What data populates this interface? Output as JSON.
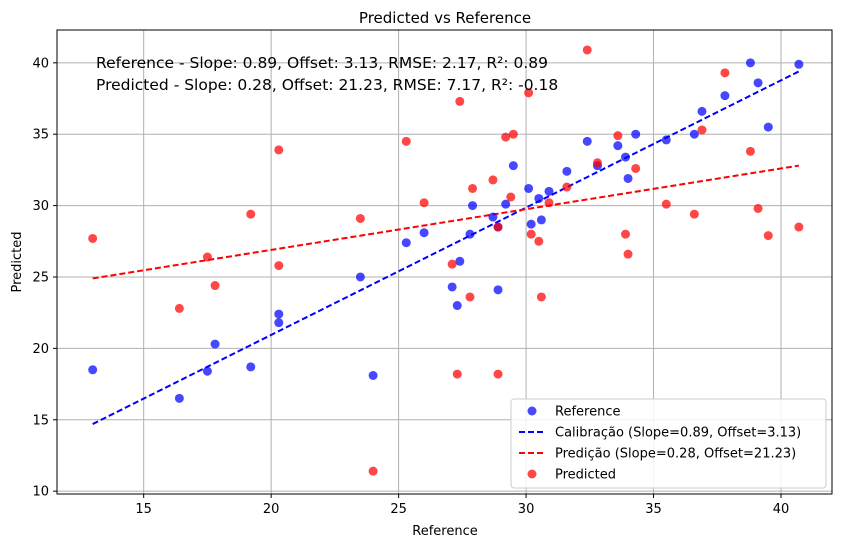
{
  "chart_data": {
    "type": "scatter",
    "title": "Predicted vs Reference",
    "xlabel": "Reference",
    "ylabel": "Predicted",
    "xlim": [
      11.6,
      42.0
    ],
    "ylim": [
      9.8,
      42.3
    ],
    "xticks": [
      15,
      20,
      25,
      30,
      35,
      40
    ],
    "yticks": [
      10,
      15,
      20,
      25,
      30,
      35,
      40
    ],
    "grid": true,
    "legend_position": "lower-right",
    "annotations": [
      "Reference - Slope: 0.89, Offset: 3.13, RMSE: 2.17, R²: 0.89",
      "Predicted - Slope: 0.28, Offset: 21.23, RMSE: 7.17, R²: -0.18"
    ],
    "colors": {
      "reference": "#0000ff",
      "predicted": "#ff0000"
    },
    "series": [
      {
        "name": "Reference",
        "kind": "scatter",
        "points": [
          [
            13.0,
            18.5
          ],
          [
            16.4,
            16.5
          ],
          [
            17.5,
            18.4
          ],
          [
            17.8,
            20.3
          ],
          [
            19.2,
            18.7
          ],
          [
            20.3,
            21.8
          ],
          [
            20.3,
            22.4
          ],
          [
            23.5,
            25.0
          ],
          [
            24.0,
            18.1
          ],
          [
            25.3,
            27.4
          ],
          [
            26.0,
            28.1
          ],
          [
            27.1,
            24.3
          ],
          [
            27.3,
            23.0
          ],
          [
            27.4,
            26.1
          ],
          [
            27.8,
            28.0
          ],
          [
            27.9,
            30.0
          ],
          [
            28.7,
            29.2
          ],
          [
            28.9,
            28.5
          ],
          [
            28.9,
            24.1
          ],
          [
            29.2,
            30.1
          ],
          [
            29.5,
            32.8
          ],
          [
            30.1,
            31.2
          ],
          [
            30.2,
            28.7
          ],
          [
            30.5,
            30.5
          ],
          [
            30.6,
            29.0
          ],
          [
            30.9,
            31.0
          ],
          [
            31.6,
            32.4
          ],
          [
            32.4,
            34.5
          ],
          [
            32.8,
            32.8
          ],
          [
            33.6,
            34.2
          ],
          [
            33.9,
            33.4
          ],
          [
            34.0,
            31.9
          ],
          [
            34.3,
            35.0
          ],
          [
            35.5,
            34.6
          ],
          [
            36.6,
            35.0
          ],
          [
            36.9,
            36.6
          ],
          [
            37.8,
            37.7
          ],
          [
            38.8,
            40.0
          ],
          [
            39.1,
            38.6
          ],
          [
            39.5,
            35.5
          ],
          [
            40.7,
            39.9
          ]
        ]
      },
      {
        "name": "Calibração (Slope=0.89, Offset=3.13)",
        "kind": "line",
        "points": [
          [
            13.0,
            14.7
          ],
          [
            40.7,
            39.4
          ]
        ]
      },
      {
        "name": "Predição (Slope=0.28, Offset=21.23)",
        "kind": "line",
        "points": [
          [
            13.0,
            24.9
          ],
          [
            40.7,
            32.8
          ]
        ]
      },
      {
        "name": "Predicted",
        "kind": "scatter",
        "points": [
          [
            13.0,
            27.7
          ],
          [
            16.4,
            22.8
          ],
          [
            17.5,
            26.4
          ],
          [
            17.8,
            24.4
          ],
          [
            19.2,
            29.4
          ],
          [
            20.3,
            25.8
          ],
          [
            20.3,
            33.9
          ],
          [
            23.5,
            29.1
          ],
          [
            24.0,
            11.4
          ],
          [
            25.3,
            34.5
          ],
          [
            26.0,
            30.2
          ],
          [
            27.1,
            25.9
          ],
          [
            27.3,
            18.2
          ],
          [
            27.4,
            37.3
          ],
          [
            27.8,
            23.6
          ],
          [
            27.9,
            31.2
          ],
          [
            28.7,
            31.8
          ],
          [
            28.9,
            28.5
          ],
          [
            28.9,
            18.2
          ],
          [
            29.2,
            34.8
          ],
          [
            29.4,
            30.6
          ],
          [
            29.5,
            35.0
          ],
          [
            30.1,
            37.9
          ],
          [
            30.2,
            28.0
          ],
          [
            30.5,
            27.5
          ],
          [
            30.6,
            23.6
          ],
          [
            30.9,
            30.2
          ],
          [
            31.6,
            31.3
          ],
          [
            32.4,
            40.9
          ],
          [
            32.8,
            33.0
          ],
          [
            33.6,
            34.9
          ],
          [
            33.9,
            28.0
          ],
          [
            34.0,
            26.6
          ],
          [
            34.3,
            32.6
          ],
          [
            35.5,
            30.1
          ],
          [
            36.6,
            29.4
          ],
          [
            36.9,
            35.3
          ],
          [
            37.8,
            39.3
          ],
          [
            38.8,
            33.8
          ],
          [
            39.1,
            29.8
          ],
          [
            39.5,
            27.9
          ],
          [
            40.7,
            28.5
          ]
        ]
      }
    ]
  }
}
